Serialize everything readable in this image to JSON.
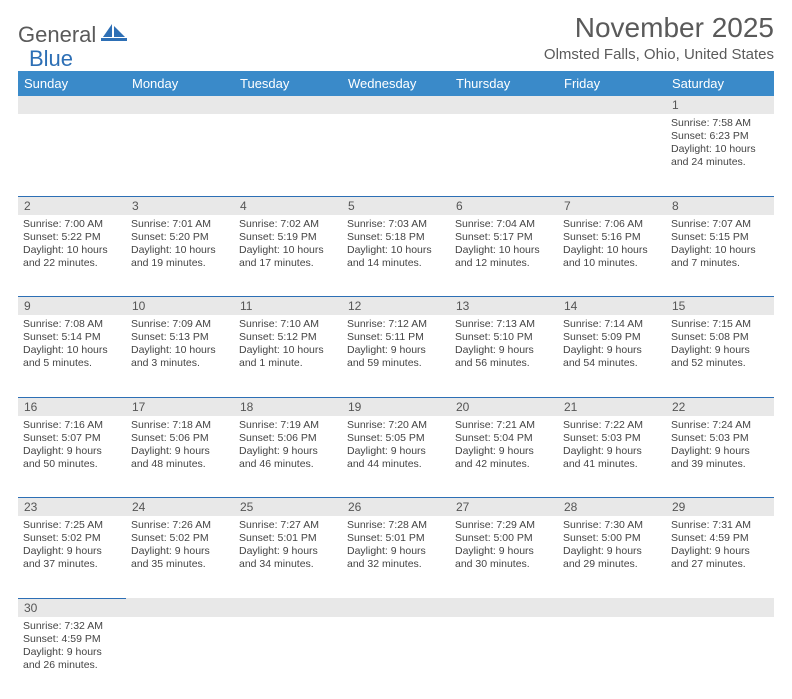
{
  "logo": {
    "word1": "General",
    "word2": "Blue"
  },
  "title": "November 2025",
  "location": "Olmsted Falls, Ohio, United States",
  "weekdays": [
    "Sunday",
    "Monday",
    "Tuesday",
    "Wednesday",
    "Thursday",
    "Friday",
    "Saturday"
  ],
  "colors": {
    "header_bg": "#3a8ac9",
    "header_text": "#ffffff",
    "num_bg": "#e8e8e8",
    "border": "#2d6fb5",
    "text": "#444444"
  },
  "weeks": [
    [
      null,
      null,
      null,
      null,
      null,
      null,
      {
        "n": "1",
        "sunrise": "Sunrise: 7:58 AM",
        "sunset": "Sunset: 6:23 PM",
        "daylight": "Daylight: 10 hours and 24 minutes."
      }
    ],
    [
      {
        "n": "2",
        "sunrise": "Sunrise: 7:00 AM",
        "sunset": "Sunset: 5:22 PM",
        "daylight": "Daylight: 10 hours and 22 minutes."
      },
      {
        "n": "3",
        "sunrise": "Sunrise: 7:01 AM",
        "sunset": "Sunset: 5:20 PM",
        "daylight": "Daylight: 10 hours and 19 minutes."
      },
      {
        "n": "4",
        "sunrise": "Sunrise: 7:02 AM",
        "sunset": "Sunset: 5:19 PM",
        "daylight": "Daylight: 10 hours and 17 minutes."
      },
      {
        "n": "5",
        "sunrise": "Sunrise: 7:03 AM",
        "sunset": "Sunset: 5:18 PM",
        "daylight": "Daylight: 10 hours and 14 minutes."
      },
      {
        "n": "6",
        "sunrise": "Sunrise: 7:04 AM",
        "sunset": "Sunset: 5:17 PM",
        "daylight": "Daylight: 10 hours and 12 minutes."
      },
      {
        "n": "7",
        "sunrise": "Sunrise: 7:06 AM",
        "sunset": "Sunset: 5:16 PM",
        "daylight": "Daylight: 10 hours and 10 minutes."
      },
      {
        "n": "8",
        "sunrise": "Sunrise: 7:07 AM",
        "sunset": "Sunset: 5:15 PM",
        "daylight": "Daylight: 10 hours and 7 minutes."
      }
    ],
    [
      {
        "n": "9",
        "sunrise": "Sunrise: 7:08 AM",
        "sunset": "Sunset: 5:14 PM",
        "daylight": "Daylight: 10 hours and 5 minutes."
      },
      {
        "n": "10",
        "sunrise": "Sunrise: 7:09 AM",
        "sunset": "Sunset: 5:13 PM",
        "daylight": "Daylight: 10 hours and 3 minutes."
      },
      {
        "n": "11",
        "sunrise": "Sunrise: 7:10 AM",
        "sunset": "Sunset: 5:12 PM",
        "daylight": "Daylight: 10 hours and 1 minute."
      },
      {
        "n": "12",
        "sunrise": "Sunrise: 7:12 AM",
        "sunset": "Sunset: 5:11 PM",
        "daylight": "Daylight: 9 hours and 59 minutes."
      },
      {
        "n": "13",
        "sunrise": "Sunrise: 7:13 AM",
        "sunset": "Sunset: 5:10 PM",
        "daylight": "Daylight: 9 hours and 56 minutes."
      },
      {
        "n": "14",
        "sunrise": "Sunrise: 7:14 AM",
        "sunset": "Sunset: 5:09 PM",
        "daylight": "Daylight: 9 hours and 54 minutes."
      },
      {
        "n": "15",
        "sunrise": "Sunrise: 7:15 AM",
        "sunset": "Sunset: 5:08 PM",
        "daylight": "Daylight: 9 hours and 52 minutes."
      }
    ],
    [
      {
        "n": "16",
        "sunrise": "Sunrise: 7:16 AM",
        "sunset": "Sunset: 5:07 PM",
        "daylight": "Daylight: 9 hours and 50 minutes."
      },
      {
        "n": "17",
        "sunrise": "Sunrise: 7:18 AM",
        "sunset": "Sunset: 5:06 PM",
        "daylight": "Daylight: 9 hours and 48 minutes."
      },
      {
        "n": "18",
        "sunrise": "Sunrise: 7:19 AM",
        "sunset": "Sunset: 5:06 PM",
        "daylight": "Daylight: 9 hours and 46 minutes."
      },
      {
        "n": "19",
        "sunrise": "Sunrise: 7:20 AM",
        "sunset": "Sunset: 5:05 PM",
        "daylight": "Daylight: 9 hours and 44 minutes."
      },
      {
        "n": "20",
        "sunrise": "Sunrise: 7:21 AM",
        "sunset": "Sunset: 5:04 PM",
        "daylight": "Daylight: 9 hours and 42 minutes."
      },
      {
        "n": "21",
        "sunrise": "Sunrise: 7:22 AM",
        "sunset": "Sunset: 5:03 PM",
        "daylight": "Daylight: 9 hours and 41 minutes."
      },
      {
        "n": "22",
        "sunrise": "Sunrise: 7:24 AM",
        "sunset": "Sunset: 5:03 PM",
        "daylight": "Daylight: 9 hours and 39 minutes."
      }
    ],
    [
      {
        "n": "23",
        "sunrise": "Sunrise: 7:25 AM",
        "sunset": "Sunset: 5:02 PM",
        "daylight": "Daylight: 9 hours and 37 minutes."
      },
      {
        "n": "24",
        "sunrise": "Sunrise: 7:26 AM",
        "sunset": "Sunset: 5:02 PM",
        "daylight": "Daylight: 9 hours and 35 minutes."
      },
      {
        "n": "25",
        "sunrise": "Sunrise: 7:27 AM",
        "sunset": "Sunset: 5:01 PM",
        "daylight": "Daylight: 9 hours and 34 minutes."
      },
      {
        "n": "26",
        "sunrise": "Sunrise: 7:28 AM",
        "sunset": "Sunset: 5:01 PM",
        "daylight": "Daylight: 9 hours and 32 minutes."
      },
      {
        "n": "27",
        "sunrise": "Sunrise: 7:29 AM",
        "sunset": "Sunset: 5:00 PM",
        "daylight": "Daylight: 9 hours and 30 minutes."
      },
      {
        "n": "28",
        "sunrise": "Sunrise: 7:30 AM",
        "sunset": "Sunset: 5:00 PM",
        "daylight": "Daylight: 9 hours and 29 minutes."
      },
      {
        "n": "29",
        "sunrise": "Sunrise: 7:31 AM",
        "sunset": "Sunset: 4:59 PM",
        "daylight": "Daylight: 9 hours and 27 minutes."
      }
    ],
    [
      {
        "n": "30",
        "sunrise": "Sunrise: 7:32 AM",
        "sunset": "Sunset: 4:59 PM",
        "daylight": "Daylight: 9 hours and 26 minutes."
      },
      null,
      null,
      null,
      null,
      null,
      null
    ]
  ]
}
